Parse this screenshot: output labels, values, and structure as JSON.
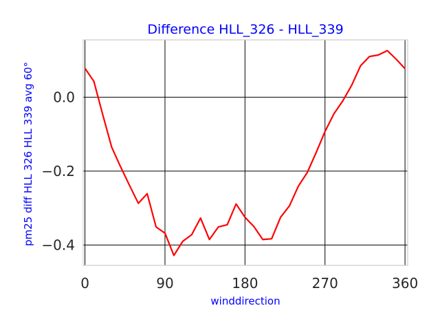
{
  "chart_data": {
    "type": "line",
    "title": "Difference HLL_326 - HLL_339",
    "xlabel": "winddirection",
    "ylabel": "pm25 diff HLL 326 HLL 339 avg 60°",
    "xlim": [
      -2,
      363
    ],
    "ylim": [
      -0.455,
      0.155
    ],
    "xticks": [
      0,
      90,
      180,
      270,
      360
    ],
    "xtick_labels": [
      "0",
      "90",
      "180",
      "270",
      "360"
    ],
    "yticks": [
      0.0,
      -0.2,
      -0.4
    ],
    "ytick_labels": [
      "0.0",
      "−0.2",
      "−0.4"
    ],
    "grid": true,
    "colors": {
      "line": "#ff0000",
      "grid": "#000000",
      "frame": "#cccccc",
      "text": "#0000ff"
    },
    "series": [
      {
        "x": [
          0,
          10,
          20,
          30,
          40,
          50,
          60,
          70,
          80,
          90,
          100,
          110,
          120,
          130,
          140,
          150,
          160,
          170,
          180,
          190,
          200,
          210,
          220,
          230,
          240,
          250,
          260,
          270,
          280,
          290,
          300,
          310,
          320,
          330,
          340,
          350,
          360
        ],
        "values": [
          0.078,
          0.043,
          -0.047,
          -0.135,
          -0.188,
          -0.238,
          -0.287,
          -0.261,
          -0.351,
          -0.368,
          -0.428,
          -0.39,
          -0.372,
          -0.327,
          -0.385,
          -0.351,
          -0.345,
          -0.289,
          -0.325,
          -0.35,
          -0.385,
          -0.383,
          -0.325,
          -0.294,
          -0.241,
          -0.204,
          -0.15,
          -0.093,
          -0.045,
          -0.01,
          0.032,
          0.085,
          0.11,
          0.114,
          0.126,
          0.103,
          0.077
        ]
      }
    ]
  }
}
